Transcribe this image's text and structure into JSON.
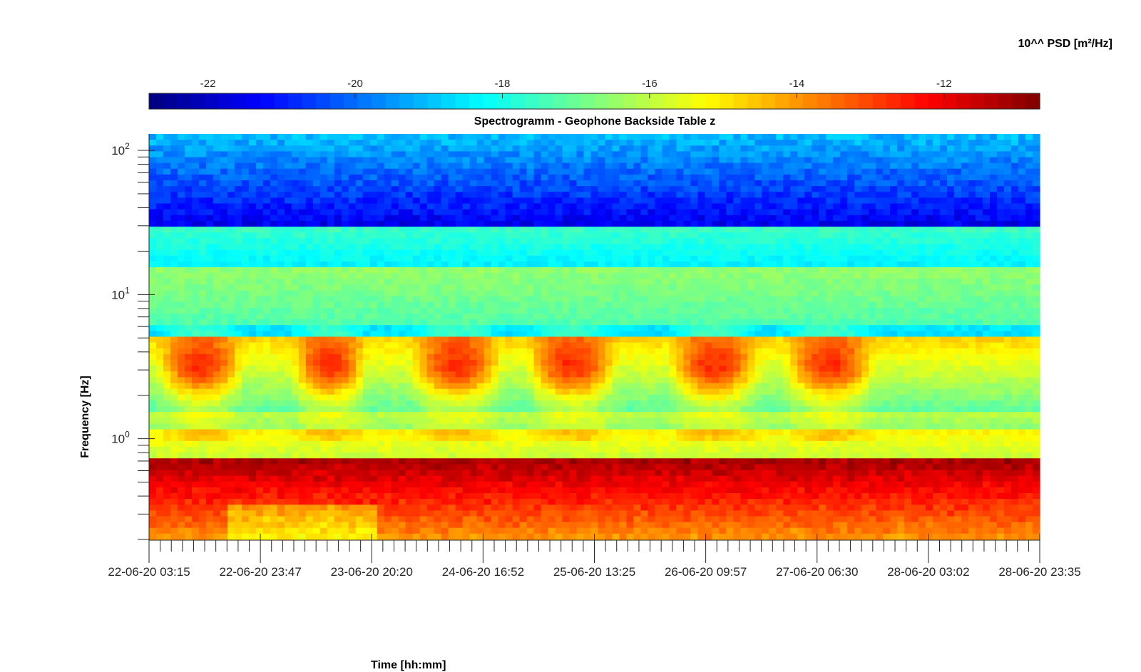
{
  "chart_data": {
    "type": "heatmap",
    "title": "Spectrogramm - Geophone Backside Table z",
    "xlabel": "Time [hh:mm]",
    "ylabel": "Frequency [Hz]",
    "x_ticks": [
      "22-06-20 03:15",
      "22-06-20 23:47",
      "23-06-20 20:20",
      "24-06-20 16:52",
      "25-06-20 13:25",
      "26-06-20 09:57",
      "27-06-20 06:30",
      "28-06-20 03:02",
      "28-06-20 23:35"
    ],
    "y_scale": "log",
    "y_ticks": [
      {
        "base": "10",
        "exp": "0",
        "value": 1
      },
      {
        "base": "10",
        "exp": "1",
        "value": 10
      },
      {
        "base": "10",
        "exp": "2",
        "value": 100
      }
    ],
    "ylim": [
      0.2,
      130
    ],
    "colorbar": {
      "label": "10^^ PSD [m²/Hz]",
      "ticks": [
        "-22",
        "-20",
        "-18",
        "-16",
        "-14",
        "-12"
      ],
      "tick_values": [
        -22,
        -20,
        -18,
        -16,
        -14,
        -12
      ],
      "range": [
        -22.8,
        -10.7
      ],
      "colormap": "jet",
      "location": "top"
    },
    "observed_levels_log10_psd": [
      {
        "freq_range_hz": [
          30,
          130
        ],
        "level": [
          -21.5,
          -19.0
        ]
      },
      {
        "freq_range_hz": [
          15,
          30
        ],
        "level": [
          -18.5,
          -17.5
        ]
      },
      {
        "freq_range_hz": [
          5,
          15
        ],
        "level": [
          -17.5,
          -16.5
        ]
      },
      {
        "freq_range_hz": [
          1.2,
          5
        ],
        "level": [
          -16.5,
          -13.5
        ]
      },
      {
        "freq_range_hz": [
          0.7,
          1.2
        ],
        "level": [
          -16.0,
          -15.0
        ]
      },
      {
        "freq_range_hz": [
          0.2,
          0.7
        ],
        "level": [
          -14.0,
          -11.2
        ]
      }
    ],
    "daily_activity_bands": [
      {
        "start": "22-06-20 03:15",
        "peak_log10_psd": -13.8
      },
      {
        "start": "23-06-20 04:00",
        "peak_log10_psd": -13.6
      },
      {
        "start": "24-06-20 03:30",
        "peak_log10_psd": -13.6
      },
      {
        "start": "25-06-20 05:00",
        "peak_log10_psd": -13.7
      },
      {
        "start": "26-06-20 04:00",
        "peak_log10_psd": -13.6
      },
      {
        "start": "27-06-20 04:00",
        "peak_log10_psd": -13.8
      }
    ]
  }
}
